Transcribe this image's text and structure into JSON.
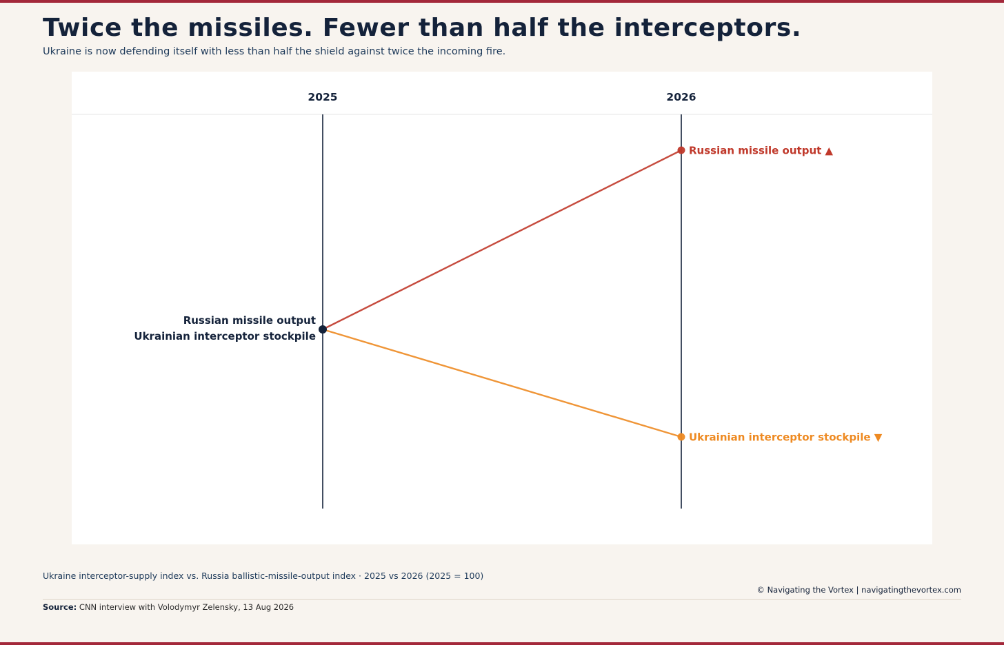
{
  "header": {
    "title": "Twice the missiles. Fewer than half the interceptors.",
    "subtitle": "Ukraine is now defending itself with less than half the shield against twice the incoming fire."
  },
  "chart_data": {
    "type": "line",
    "categories": [
      "2025",
      "2026"
    ],
    "series": [
      {
        "name": "Russian missile output",
        "end_label": "Russian missile output ▲",
        "values": [
          100,
          200
        ],
        "color": "#c0392b"
      },
      {
        "name": "Ukrainian interceptor stockpile",
        "end_label": "Ukrainian interceptor stockpile ▼",
        "values": [
          100,
          40
        ],
        "color": "#ee8a22"
      }
    ],
    "start_point_color": "#14223a",
    "ylim": [
      -50,
      220
    ],
    "grid": false
  },
  "footer": {
    "caption": "Ukraine interceptor-supply index vs. Russia ballistic-missile-output index · 2025 vs 2026 (2025 = 100)",
    "copyright": "© Navigating the Vortex | navigatingthevortex.com",
    "source_label": "Source:",
    "source_text": "CNN interview with Volodymyr Zelensky, 13 Aug 2026"
  }
}
